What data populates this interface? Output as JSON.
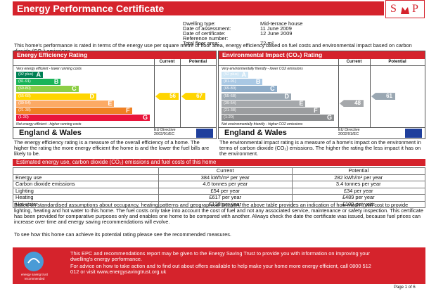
{
  "header": {
    "title": "Energy Performance Certificate",
    "logo": [
      "S",
      "P"
    ]
  },
  "details": [
    {
      "label": "Dwelling type:",
      "value": "Mid-terrace house"
    },
    {
      "label": "Date of assessment:",
      "value": "11 June 2009"
    },
    {
      "label": "Date of certificate:",
      "value": "12 June 2009"
    },
    {
      "label": "Reference number:"
    },
    {
      "label": "Total floor area:",
      "value": "72 m²"
    }
  ],
  "intro": "This home's performance is rated in terms of the energy use per square metre of floor area, energy efficiency based on fuel costs and environmental impact based on carbon dioxide (CO₂) emissions.",
  "ratings": [
    {
      "title": "Energy Efficiency Rating",
      "current_label": "Current",
      "potential_label": "Potential",
      "top_note": "Very energy efficient - lower running costs",
      "bottom_note": "Not energy efficient - higher running costs",
      "bands": [
        {
          "range": "(92 plus)",
          "letter": "A",
          "color": "#008054"
        },
        {
          "range": "(81-91)",
          "letter": "B",
          "color": "#19b459"
        },
        {
          "range": "(69-80)",
          "letter": "C",
          "color": "#8dce46"
        },
        {
          "range": "(55-68)",
          "letter": "D",
          "color": "#ffd500"
        },
        {
          "range": "(39-54)",
          "letter": "E",
          "color": "#fcaa65"
        },
        {
          "range": "(21-38)",
          "letter": "F",
          "color": "#ef8023"
        },
        {
          "range": "(1-20)",
          "letter": "G",
          "color": "#e9153b"
        }
      ],
      "current": 56,
      "potential": 67,
      "region": "England & Wales",
      "directive": "EU Directive 2002/91/EC",
      "description": "The energy efficiency rating is a measure of the overall efficiency of a home. The higher the rating the more energy efficient the home is and the lower the fuel bills are likely to be."
    },
    {
      "title": "Environmental Impact (CO₂) Rating",
      "current_label": "Current",
      "potential_label": "Potential",
      "top_note": "Very environmentally friendly - lower CO2 emissions",
      "bottom_note": "Not environmentally friendly - higher CO2 emissions",
      "bands": [
        {
          "range": "(92 plus)",
          "letter": "A",
          "color": "#cfe6f5"
        },
        {
          "range": "(81-91)",
          "letter": "B",
          "color": "#a9c8e4"
        },
        {
          "range": "(69-80)",
          "letter": "C",
          "color": "#8fadc9"
        },
        {
          "range": "(55-68)",
          "letter": "D",
          "color": "#9aa7b2"
        },
        {
          "range": "(39-54)",
          "letter": "E",
          "color": "#a5a8ab"
        },
        {
          "range": "(21-38)",
          "letter": "F",
          "color": "#9b9d9f"
        },
        {
          "range": "(1-20)",
          "letter": "G",
          "color": "#8c8e90"
        }
      ],
      "current": 48,
      "potential": 61,
      "region": "England & Wales",
      "directive": "EU Directive 2002/91/EC",
      "description": "The environmental impact rating is a measure of a home's impact on the environment in terms of carbon dioxide (CO₂) emissions. The higher the rating the less impact it has on the environment."
    }
  ],
  "costs": {
    "title": "Estimated energy use, carbon dioxide (CO₂) emissions and fuel costs of this home",
    "columns": [
      "Current",
      "Potential"
    ],
    "rows": [
      [
        "Energy use",
        "384 kWh/m² per year",
        "282 kWh/m² per year"
      ],
      [
        "Carbon dioxide emissions",
        "4.6 tonnes per year",
        "3.4 tonnes per year"
      ],
      [
        "Lighting",
        "£54 per year",
        "£34 per year"
      ],
      [
        "Heating",
        "£617 per year",
        "£489 per year"
      ],
      [
        "Hot water",
        "£128 per year",
        "£109 per year"
      ]
    ],
    "note": "Based on standardised assumptions about occupancy, heating patterns and geographical location, the above table provides an indication of how much it will cost to provide lighting, heating and hot water to this home. The fuel costs only take into account the cost of fuel and not any associated service, maintenance or safety inspection. This certificate has been provided for comparative purposes only and enables one home to be compared with another. Always check the date the certificate was issued, because fuel prices can increase over time and energy saving recommendations will evolve.",
    "recommendation": "To see how this home can achieve its potential rating please see the recommended measures."
  },
  "footer": {
    "logo_name": "energy saving trust",
    "logo_tag": "recommended",
    "text_1": "This EPC and recommendations report may be given to the Energy Saving Trust to provide you with information on improving your dwelling's energy performance.",
    "text_2": "For advice on how to take action and to find out about offers available to help make your home more energy efficient, call 0800 512 012 or visit www.energysavingtrust.org.uk",
    "page": "Page 1 of 6"
  }
}
